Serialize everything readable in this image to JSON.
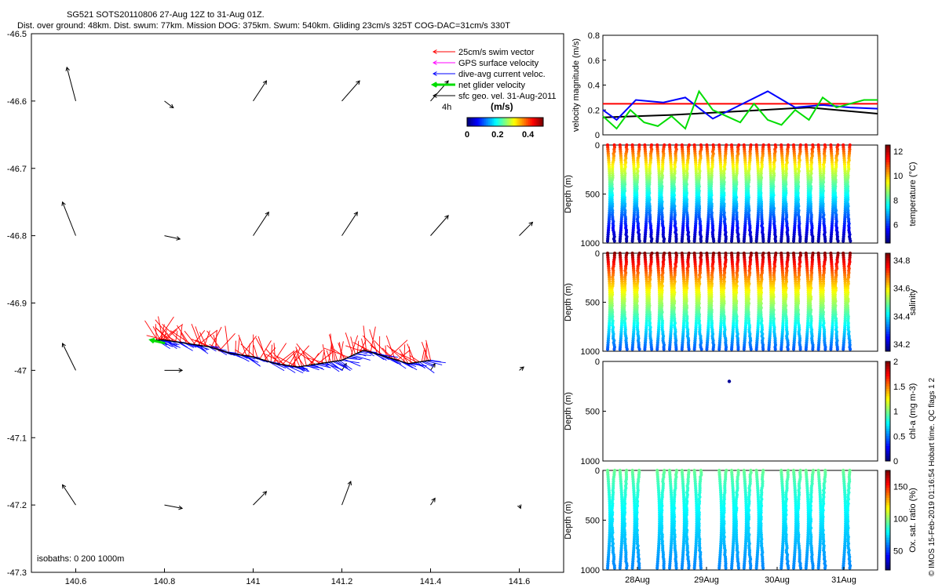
{
  "header": {
    "line1": "SG521 SOTS20110806 27-Aug 12Z to 31-Aug 01Z.",
    "line2": "Dist. over ground: 48km. Dist. swum: 77km. Mission DOG: 375km. Swum: 540km. Gliding 23cm/s 325T COG-DAC=31cm/s 330T"
  },
  "side_note": "© IMOS 15-Feb-2019 01:16:54 Hobart time. QC flags 1 2",
  "colors": {
    "swim": "#ff0000",
    "gps": "#ff00ff",
    "dac": "#0000ff",
    "net": "#00dd00",
    "geo": "#000000"
  },
  "chart_data": [
    {
      "type": "scatter",
      "name": "map",
      "xlim": [
        140.5,
        141.7
      ],
      "ylim": [
        -47.3,
        -46.5
      ],
      "xticks": [
        "140.6",
        "140.8",
        "141",
        "141.2",
        "141.4",
        "141.6"
      ],
      "yticks": [
        "-46.5",
        "-46.6",
        "-46.7",
        "-46.8",
        "-46.9",
        "-47",
        "-47.1",
        "-47.2",
        "-47.3"
      ],
      "legend": [
        {
          "label": "25cm/s swim vector",
          "color": "#ff0000"
        },
        {
          "label": "GPS surface velocity",
          "color": "#ff00ff"
        },
        {
          "label": "dive-avg current veloc.",
          "color": "#0000ff"
        },
        {
          "label": "net glider velocity",
          "color": "#00dd00"
        },
        {
          "label": "sfc geo. vel. 31-Aug-2011",
          "color": "#000000"
        }
      ],
      "legend_note": "4h",
      "colorbar": {
        "label": "(m/s)",
        "ticks": [
          "0",
          "0.2",
          "0.4"
        ],
        "range": [
          0,
          0.5
        ]
      },
      "isobath_note": "isobaths: 0   200  1000m",
      "geo_vectors": [
        [
          140.6,
          -46.6,
          -0.02,
          0.05
        ],
        [
          140.8,
          -46.6,
          0.02,
          -0.01
        ],
        [
          141.0,
          -46.6,
          0.03,
          0.03
        ],
        [
          141.2,
          -46.6,
          0.04,
          0.03
        ],
        [
          141.4,
          -46.6,
          0.04,
          0.03
        ],
        [
          140.6,
          -46.8,
          -0.03,
          0.05
        ],
        [
          140.8,
          -46.8,
          0.035,
          -0.005
        ],
        [
          141.0,
          -46.8,
          0.035,
          0.035
        ],
        [
          141.2,
          -46.8,
          0.035,
          0.035
        ],
        [
          141.4,
          -46.8,
          0.04,
          0.03
        ],
        [
          141.6,
          -46.8,
          0.03,
          0.02
        ],
        [
          140.6,
          -47.0,
          -0.03,
          0.04
        ],
        [
          140.8,
          -47.0,
          0.04,
          0.0
        ],
        [
          141.2,
          -47.0,
          0.01,
          0.01
        ],
        [
          141.4,
          -47.0,
          0.01,
          0.01
        ],
        [
          141.6,
          -47.0,
          0.01,
          0.005
        ],
        [
          140.6,
          -47.2,
          -0.03,
          0.03
        ],
        [
          140.8,
          -47.2,
          0.04,
          -0.005
        ],
        [
          141.0,
          -47.2,
          0.03,
          0.02
        ],
        [
          141.2,
          -47.2,
          0.02,
          0.035
        ],
        [
          141.4,
          -47.2,
          0.01,
          0.01
        ],
        [
          141.6,
          -47.2,
          0.003,
          -0.005
        ]
      ],
      "track": [
        [
          141.4,
          -46.985
        ],
        [
          141.35,
          -46.99
        ],
        [
          141.3,
          -46.98
        ],
        [
          141.25,
          -46.97
        ],
        [
          141.2,
          -46.985
        ],
        [
          141.15,
          -46.99
        ],
        [
          141.1,
          -46.995
        ],
        [
          141.05,
          -46.99
        ],
        [
          141.0,
          -46.98
        ],
        [
          140.95,
          -46.975
        ],
        [
          140.9,
          -46.965
        ],
        [
          140.85,
          -46.96
        ],
        [
          140.8,
          -46.955
        ],
        [
          140.78,
          -46.955
        ]
      ]
    },
    {
      "type": "line",
      "name": "velocity",
      "ylabel": "velocity magnitude (m/s)",
      "ylim": [
        0,
        0.8
      ],
      "yticks": [
        "0",
        "0.2",
        "0.4",
        "0.6",
        "0.8"
      ],
      "x_start": "27-Aug 12Z",
      "x_end": "31-Aug 01Z",
      "series": [
        {
          "color": "#ff0000",
          "x": [
            0,
            1
          ],
          "y": [
            0.25,
            0.25
          ]
        },
        {
          "color": "#000000",
          "x": [
            0,
            0.25,
            0.5,
            0.75,
            1
          ],
          "y": [
            0.14,
            0.16,
            0.19,
            0.22,
            0.17
          ]
        },
        {
          "color": "#0000ff",
          "x": [
            0,
            0.05,
            0.12,
            0.22,
            0.3,
            0.4,
            0.5,
            0.6,
            0.7,
            0.8,
            0.9,
            1
          ],
          "y": [
            0.2,
            0.12,
            0.28,
            0.26,
            0.3,
            0.13,
            0.24,
            0.35,
            0.22,
            0.24,
            0.22,
            0.21
          ]
        },
        {
          "color": "#00dd00",
          "x": [
            0,
            0.05,
            0.1,
            0.15,
            0.2,
            0.25,
            0.3,
            0.35,
            0.4,
            0.45,
            0.5,
            0.55,
            0.6,
            0.65,
            0.7,
            0.75,
            0.8,
            0.85,
            0.9,
            0.95,
            1
          ],
          "y": [
            0.15,
            0.05,
            0.2,
            0.1,
            0.07,
            0.15,
            0.05,
            0.35,
            0.2,
            0.15,
            0.1,
            0.25,
            0.12,
            0.08,
            0.2,
            0.12,
            0.3,
            0.22,
            0.25,
            0.28,
            0.28
          ]
        }
      ]
    },
    {
      "type": "scatter",
      "name": "temperature",
      "ylabel": "Depth (m)",
      "clabel": "temperature (°C)",
      "cticks": [
        "6",
        "8",
        "10",
        "12"
      ],
      "clim": [
        4.5,
        12.5
      ],
      "ylim": [
        0,
        1000
      ],
      "yticks": [
        "0",
        "500",
        "1000"
      ],
      "surface_value": 11.5,
      "deep_value": 4.8,
      "dives": 20
    },
    {
      "type": "scatter",
      "name": "salinity",
      "ylabel": "Depth (m)",
      "clabel": "salinity",
      "cticks": [
        "34.2",
        "34.4",
        "34.6",
        "34.8"
      ],
      "clim": [
        34.15,
        34.85
      ],
      "ylim": [
        0,
        1000
      ],
      "yticks": [
        "0",
        "500",
        "1000"
      ],
      "surface_value": 34.85,
      "deep_value": 34.3,
      "dives": 20
    },
    {
      "type": "scatter",
      "name": "chlorophyll",
      "ylabel": "Depth (m)",
      "clabel": "chl-a (mg m-3)",
      "cticks": [
        "0",
        "0.5",
        "1",
        "1.5",
        "2"
      ],
      "clim": [
        0,
        2
      ],
      "ylim": [
        0,
        1000
      ],
      "yticks": [
        "0",
        "500",
        "1000"
      ],
      "points": [
        [
          0.46,
          200,
          0.05
        ]
      ]
    },
    {
      "type": "scatter",
      "name": "oxygen",
      "ylabel": "Depth (m)",
      "clabel": "Ox. sat. ratio (%)",
      "cticks": [
        "50",
        "100",
        "150"
      ],
      "clim": [
        20,
        175
      ],
      "ylim": [
        0,
        1000
      ],
      "yticks": [
        "0",
        "500",
        "1000"
      ],
      "xticks": [
        "28Aug",
        "29Aug",
        "30Aug",
        "31Aug"
      ],
      "surface_value": 95,
      "deep_value": 60,
      "dives": 20,
      "gaps": [
        3,
        8,
        13,
        18
      ]
    }
  ]
}
